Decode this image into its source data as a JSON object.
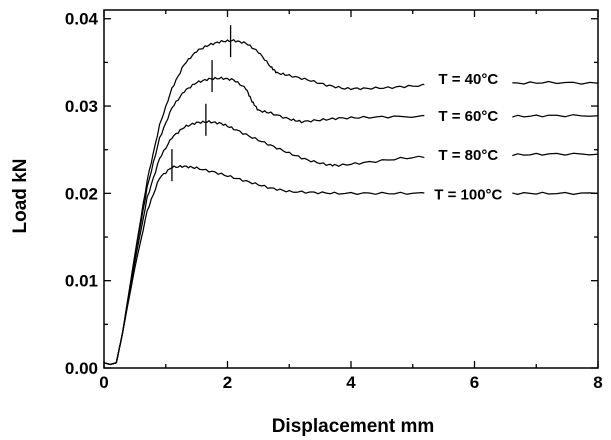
{
  "chart_data": {
    "type": "line",
    "title": "",
    "xlabel": "Displacement mm",
    "ylabel": "Load kN",
    "xlim": [
      0,
      8
    ],
    "ylim": [
      0,
      0.041
    ],
    "x_ticks": [
      0,
      2,
      4,
      6,
      8
    ],
    "x_tick_labels": [
      "0",
      "2",
      "4",
      "6",
      "8"
    ],
    "y_ticks": [
      0.0,
      0.01,
      0.02,
      0.03,
      0.04
    ],
    "y_tick_labels": [
      "0.00",
      "0.01",
      "0.02",
      "0.03",
      "0.04"
    ],
    "grid": false,
    "legend": "inline labels at right",
    "series": [
      {
        "name": "T = 40°C",
        "label_at": [
          5.9,
          0.0332
        ],
        "marker": [
          2.05,
          0.0372
        ],
        "points": [
          [
            0,
            0.0006
          ],
          [
            0.1,
            0.0004
          ],
          [
            0.2,
            0.0006
          ],
          [
            0.3,
            0.004
          ],
          [
            0.5,
            0.013
          ],
          [
            0.7,
            0.0215
          ],
          [
            0.9,
            0.0278
          ],
          [
            1.1,
            0.032
          ],
          [
            1.3,
            0.0348
          ],
          [
            1.5,
            0.0363
          ],
          [
            1.7,
            0.037
          ],
          [
            1.9,
            0.0374
          ],
          [
            2.1,
            0.0375
          ],
          [
            2.3,
            0.0372
          ],
          [
            2.5,
            0.0362
          ],
          [
            2.7,
            0.0345
          ],
          [
            2.8,
            0.0338
          ],
          [
            3.0,
            0.0335
          ],
          [
            3.3,
            0.033
          ],
          [
            3.6,
            0.0324
          ],
          [
            3.9,
            0.032
          ],
          [
            4.2,
            0.032
          ],
          [
            4.6,
            0.0321
          ],
          [
            5.0,
            0.0323
          ],
          [
            5.5,
            0.0325
          ],
          [
            5.9,
            0.0326
          ],
          [
            6.6,
            0.0326
          ],
          [
            7.2,
            0.0327
          ],
          [
            8.0,
            0.0326
          ]
        ]
      },
      {
        "name": "T = 60°C",
        "label_at": [
          5.9,
          0.029
        ],
        "marker": [
          1.75,
          0.0332
        ],
        "points": [
          [
            0,
            0.0006
          ],
          [
            0.1,
            0.0004
          ],
          [
            0.2,
            0.0006
          ],
          [
            0.3,
            0.004
          ],
          [
            0.5,
            0.0128
          ],
          [
            0.7,
            0.0207
          ],
          [
            0.9,
            0.0263
          ],
          [
            1.1,
            0.0298
          ],
          [
            1.3,
            0.0317
          ],
          [
            1.5,
            0.0327
          ],
          [
            1.7,
            0.0331
          ],
          [
            1.9,
            0.0332
          ],
          [
            2.1,
            0.033
          ],
          [
            2.3,
            0.032
          ],
          [
            2.4,
            0.0305
          ],
          [
            2.5,
            0.0295
          ],
          [
            2.7,
            0.0292
          ],
          [
            3.0,
            0.0285
          ],
          [
            3.2,
            0.0282
          ],
          [
            3.5,
            0.0284
          ],
          [
            3.8,
            0.0286
          ],
          [
            4.2,
            0.0287
          ],
          [
            4.8,
            0.0288
          ],
          [
            5.9,
            0.0288
          ],
          [
            6.6,
            0.0288
          ],
          [
            7.2,
            0.0289
          ],
          [
            8.0,
            0.0289
          ]
        ]
      },
      {
        "name": "T = 80°C",
        "label_at": [
          5.9,
          0.0245
        ],
        "marker": [
          1.65,
          0.0282
        ],
        "points": [
          [
            0,
            0.0006
          ],
          [
            0.1,
            0.0004
          ],
          [
            0.2,
            0.0006
          ],
          [
            0.3,
            0.004
          ],
          [
            0.5,
            0.0122
          ],
          [
            0.7,
            0.0195
          ],
          [
            0.9,
            0.024
          ],
          [
            1.1,
            0.0264
          ],
          [
            1.3,
            0.0276
          ],
          [
            1.5,
            0.0281
          ],
          [
            1.7,
            0.0282
          ],
          [
            1.9,
            0.028
          ],
          [
            2.1,
            0.0274
          ],
          [
            2.4,
            0.0264
          ],
          [
            2.7,
            0.0255
          ],
          [
            3.0,
            0.0246
          ],
          [
            3.3,
            0.0238
          ],
          [
            3.6,
            0.0233
          ],
          [
            3.8,
            0.0232
          ],
          [
            4.2,
            0.0235
          ],
          [
            4.8,
            0.024
          ],
          [
            5.4,
            0.0243
          ],
          [
            5.9,
            0.0244
          ],
          [
            6.6,
            0.0244
          ],
          [
            7.2,
            0.0245
          ],
          [
            8.0,
            0.0245
          ]
        ]
      },
      {
        "name": "T = 100°C",
        "label_at": [
          5.9,
          0.02
        ],
        "marker": [
          1.1,
          0.023
        ],
        "points": [
          [
            0,
            0.0006
          ],
          [
            0.1,
            0.0004
          ],
          [
            0.2,
            0.0006
          ],
          [
            0.3,
            0.004
          ],
          [
            0.5,
            0.0115
          ],
          [
            0.7,
            0.018
          ],
          [
            0.9,
            0.0218
          ],
          [
            1.1,
            0.023
          ],
          [
            1.3,
            0.0231
          ],
          [
            1.5,
            0.0229
          ],
          [
            1.8,
            0.0224
          ],
          [
            2.1,
            0.0218
          ],
          [
            2.4,
            0.0212
          ],
          [
            2.7,
            0.0206
          ],
          [
            3.0,
            0.0202
          ],
          [
            3.4,
            0.0201
          ],
          [
            3.8,
            0.02
          ],
          [
            4.4,
            0.02
          ],
          [
            5.0,
            0.02
          ],
          [
            5.9,
            0.02
          ],
          [
            6.6,
            0.02
          ],
          [
            7.2,
            0.02
          ],
          [
            8.0,
            0.02
          ]
        ]
      }
    ]
  }
}
